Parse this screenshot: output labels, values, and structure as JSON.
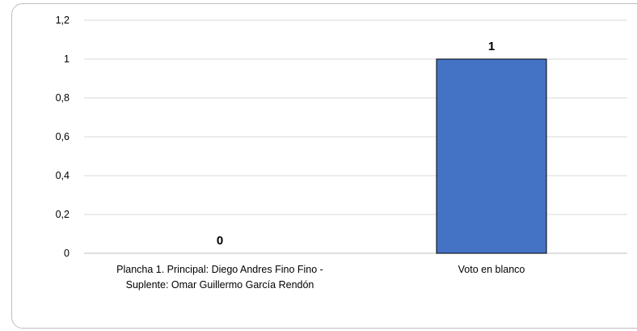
{
  "chart_data": {
    "type": "bar",
    "categories": [
      [
        "Plancha 1. Principal:  Diego Andres Fino Fino -",
        "Suplente: Omar Guillermo García Rendón"
      ],
      [
        "Voto en blanco"
      ]
    ],
    "values": [
      0,
      1
    ],
    "data_labels": [
      "0",
      "1"
    ],
    "y_ticks": [
      "0",
      "0,2",
      "0,4",
      "0,6",
      "0,8",
      "1",
      "1,2"
    ],
    "ylim": [
      0,
      1.2
    ],
    "grid": true,
    "legend": "none",
    "colors": {
      "bar": "#4472c4",
      "bar_border": "#000000",
      "grid": "#d9d9d9",
      "axis": "#bfbfbf"
    }
  }
}
